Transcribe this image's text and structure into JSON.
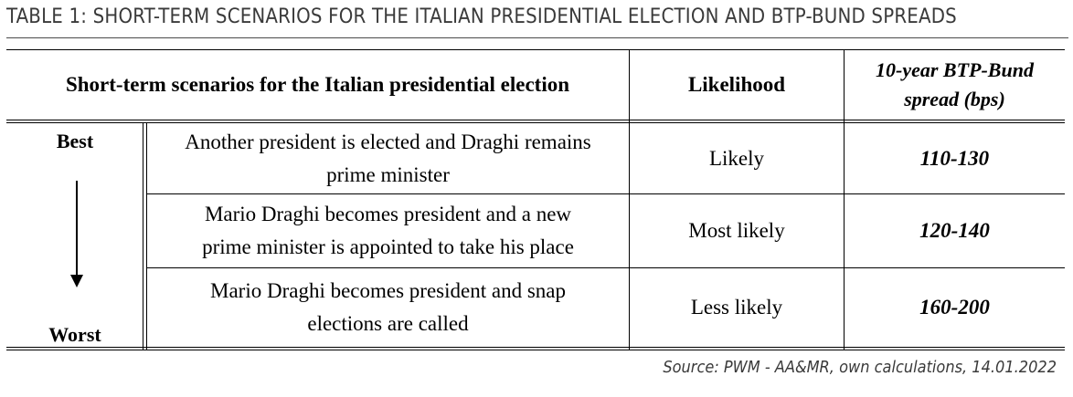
{
  "title": "TABLE 1: SHORT-TERM SCENARIOS FOR THE ITALIAN PRESIDENTIAL ELECTION AND BTP-BUND SPREADS",
  "header": {
    "scenario": "Short-term scenarios for the Italian presidential election",
    "likelihood": "Likelihood",
    "spread_line1": "10-year BTP-Bund",
    "spread_line2": "spread (bps)"
  },
  "scale": {
    "top": "Best",
    "bottom": "Worst"
  },
  "rows": [
    {
      "line1": "Another president is elected and Draghi remains",
      "line2": "prime minister",
      "likelihood": "Likely",
      "spread": "110-130"
    },
    {
      "line1": "Mario Draghi becomes president and a new",
      "line2": "prime minister is appointed to take his place",
      "likelihood": "Most likely",
      "spread": "120-140"
    },
    {
      "line1": "Mario Draghi becomes president and snap",
      "line2": "elections are called",
      "likelihood": "Less likely",
      "spread": "160-200"
    }
  ],
  "source": "Source: PWM - AA&MR, own calculations, 14.01.2022"
}
